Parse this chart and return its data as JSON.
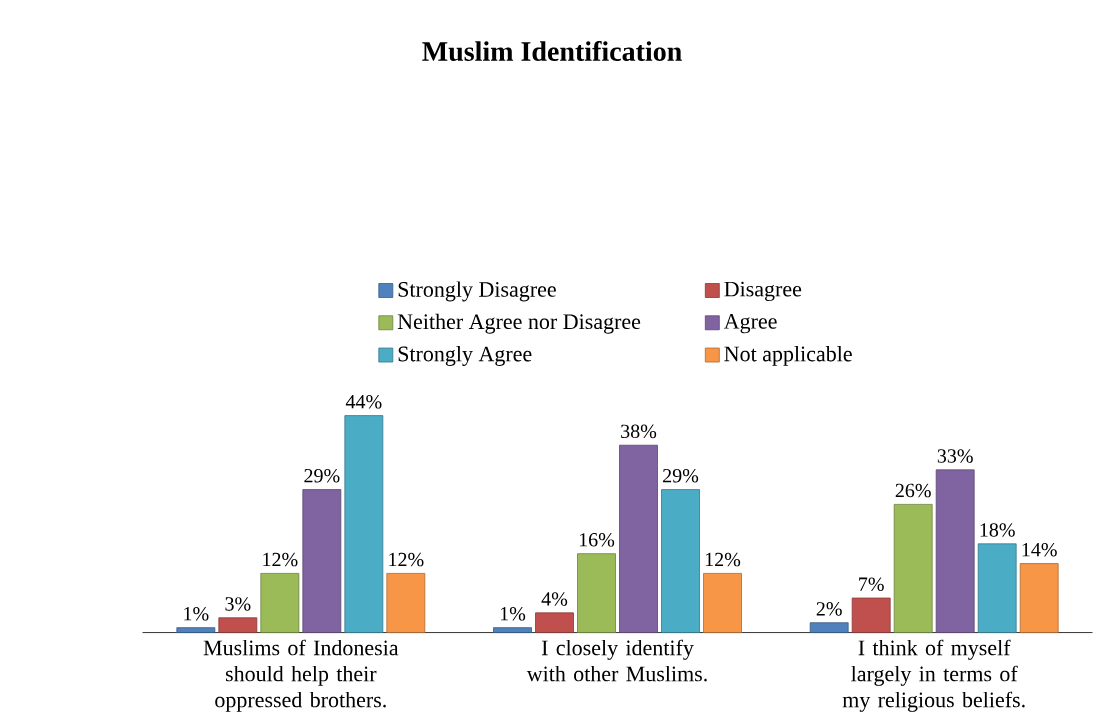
{
  "chart_data": {
    "type": "bar",
    "title": "Muslim Identification",
    "categories": [
      "Muslims of Indonesia should help their oppressed brothers.",
      "I closely identify with other Muslims.",
      "I think of myself largely in terms of my religious beliefs."
    ],
    "legend": "top",
    "series": [
      {
        "name": "Strongly Disagree",
        "color": "#4f81bd",
        "values": [
          1,
          1,
          2
        ],
        "value_labels": [
          "1%",
          "1%",
          "2%"
        ]
      },
      {
        "name": "Disagree",
        "color": "#c0504d",
        "values": [
          3,
          4,
          7
        ],
        "value_labels": [
          "3%",
          "4%",
          "7%"
        ]
      },
      {
        "name": "Neither Agree nor Disagree",
        "color": "#9bbb59",
        "values": [
          12,
          16,
          26
        ],
        "value_labels": [
          "12%",
          "16%",
          "26%"
        ]
      },
      {
        "name": "Agree",
        "color": "#8064a2",
        "values": [
          29,
          38,
          33
        ],
        "value_labels": [
          "29%",
          "38%",
          "33%"
        ]
      },
      {
        "name": "Strongly Agree",
        "color": "#4bacc6",
        "values": [
          44,
          29,
          18
        ],
        "value_labels": [
          "44%",
          "29%",
          "18%"
        ]
      },
      {
        "name": "Not applicable",
        "color": "#f79646",
        "values": [
          12,
          12,
          14
        ],
        "value_labels": [
          "12%",
          "12%",
          "14%"
        ]
      }
    ]
  }
}
